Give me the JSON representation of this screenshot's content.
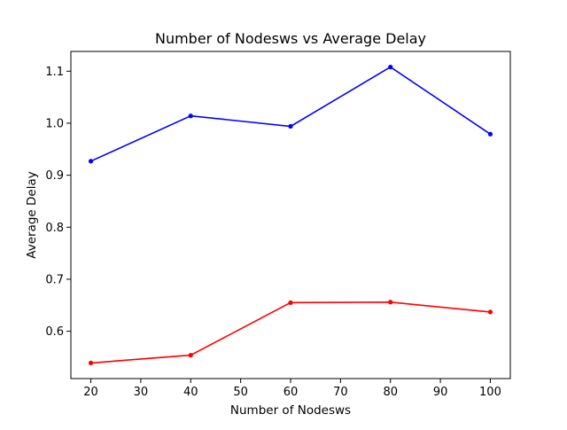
{
  "chart_data": {
    "type": "line",
    "title": "Number of Nodesws vs Average Delay",
    "xlabel": "Number of Nodesws",
    "ylabel": "Average Delay",
    "x": [
      20,
      40,
      60,
      80,
      100
    ],
    "xticks": [
      20,
      30,
      40,
      50,
      60,
      70,
      80,
      90,
      100
    ],
    "yticks": [
      "0.6",
      "0.7",
      "0.8",
      "0.9",
      "1.0",
      "1.1"
    ],
    "xlim": [
      16,
      104
    ],
    "ylim": [
      0.509,
      1.138
    ],
    "grid": false,
    "series": [
      {
        "color": "#0000ff",
        "marker": "dot",
        "values": [
          0.927,
          1.014,
          0.994,
          1.108,
          0.979
        ]
      },
      {
        "color": "#ff0000",
        "marker": "dot",
        "values": [
          0.539,
          0.554,
          0.655,
          0.656,
          0.637
        ]
      }
    ]
  }
}
